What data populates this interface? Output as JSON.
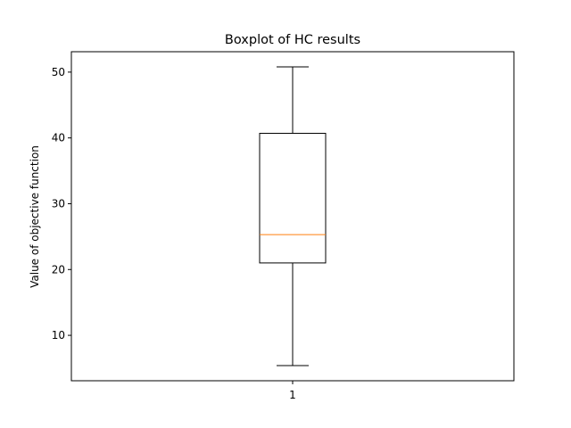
{
  "chart_data": {
    "type": "boxplot",
    "title": "Boxplot of HC results",
    "xlabel": "",
    "ylabel": "Value of objective function",
    "categories": [
      "1"
    ],
    "boxes": [
      {
        "category": "1",
        "whisker_low": 5.4,
        "q1": 21.0,
        "median": 25.3,
        "q3": 40.7,
        "whisker_high": 50.8
      }
    ],
    "ylim": [
      3.1,
      53.1
    ],
    "yticks": [
      10,
      20,
      30,
      40,
      50
    ],
    "ytick_labels": [
      "10",
      "20",
      "30",
      "40",
      "50"
    ],
    "grid": false,
    "colors": {
      "box": "#000000",
      "median": "#ff7f0e"
    }
  }
}
